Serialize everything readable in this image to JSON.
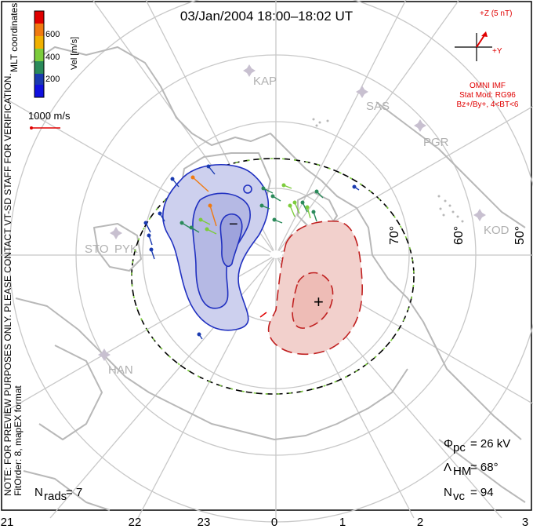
{
  "title": "03/Jan/2004 18:00–18:02 UT",
  "left_notes": {
    "coords": "MLT coordinates",
    "note": "NOTE: FOR PREVIEW PURPOSES ONLY. PLEASE CONTACT VT-SD STAFF FOR VERIFICATION.",
    "fit": "FitOrder: 8, mapEX format"
  },
  "colorbar": {
    "label": "Vel [m/s]",
    "ticks": [
      "600",
      "400",
      "200"
    ],
    "colors": [
      "#e00000",
      "#f07a10",
      "#f0b000",
      "#7ccc3c",
      "#2a8a5a",
      "#1a3ab0",
      "#1010e0"
    ]
  },
  "velocity_scale": "1000 m/s",
  "imf": {
    "z_label": "+Z (5 nT)",
    "y_label": "+Y",
    "model_title": "OMNI IMF",
    "model": "Stat Mod: RG96",
    "bins": "Bz+/By+, 4<BT<6",
    "color": "#e00000"
  },
  "radars": [
    "KAP",
    "SAS",
    "PGR",
    "KOD",
    "STO",
    "PYK",
    "HAN"
  ],
  "latitudes": [
    "70°",
    "60°",
    "50°"
  ],
  "mlt_ticks": [
    "21",
    "22",
    "23",
    "0",
    "1",
    "2",
    "3"
  ],
  "cells": {
    "negative": "−",
    "positive": "+",
    "negative_color": "#2030c0",
    "positive_color": "#c02020"
  },
  "stats": {
    "phi_label": "Φ",
    "phi_sub": "pc",
    "phi_value": "= 26 kV",
    "lambda_label": "Λ",
    "lambda_sub": "HM",
    "lambda_value": "= 68°",
    "nvc_label": "N",
    "nvc_sub": "vc",
    "nvc_value": "= 94",
    "nrads_label": "N",
    "nrads_sub": "rads",
    "nrads_value": "= 7"
  }
}
